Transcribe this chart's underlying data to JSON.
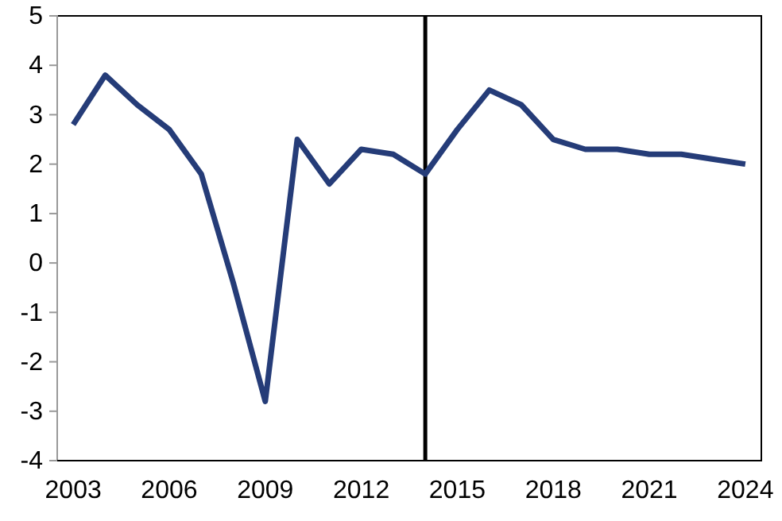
{
  "chart_data": {
    "type": "line",
    "x": [
      2003,
      2004,
      2005,
      2006,
      2007,
      2008,
      2009,
      2010,
      2011,
      2012,
      2013,
      2014,
      2015,
      2016,
      2017,
      2018,
      2019,
      2020,
      2021,
      2022,
      2023,
      2024
    ],
    "series": [
      {
        "color": "#253c78",
        "values": [
          2.8,
          3.8,
          3.2,
          2.7,
          1.8,
          -0.4,
          -2.8,
          2.5,
          1.6,
          2.3,
          2.2,
          1.8,
          2.7,
          3.5,
          3.2,
          2.5,
          2.3,
          2.3,
          2.2,
          2.2,
          2.1,
          2.0
        ]
      }
    ],
    "xlim": [
      2002.5,
      2024.5
    ],
    "xticks": [
      2003,
      2006,
      2009,
      2012,
      2015,
      2018,
      2021,
      2024
    ],
    "ylim": [
      -4,
      5
    ],
    "yticks": [
      -4,
      -3,
      -2,
      -1,
      0,
      1,
      2,
      3,
      4,
      5
    ],
    "ref_lines": [
      {
        "axis": "x",
        "value": 2014,
        "color": "#000000"
      }
    ],
    "grid": false,
    "marker": "none",
    "line_style": "solid"
  }
}
